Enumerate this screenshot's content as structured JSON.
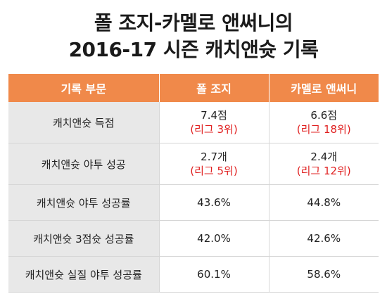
{
  "title": {
    "line1": "폴 조지-카멜로 앤써니의",
    "line2": "2016-17 시즌 캐치앤슛 기록"
  },
  "table": {
    "headers": [
      "기록 부문",
      "폴 조지",
      "카멜로 앤써니"
    ],
    "rows": [
      {
        "category": "캐치앤슛 득점",
        "george": {
          "value": "7.4점",
          "rank": "(리그 3위)"
        },
        "anthony": {
          "value": "6.6점",
          "rank": "(리그 18위)"
        }
      },
      {
        "category": "캐치앤슛 야투 성공",
        "george": {
          "value": "2.7개",
          "rank": "(리그 5위)"
        },
        "anthony": {
          "value": "2.4개",
          "rank": "(리그 12위)"
        }
      },
      {
        "category": "캐치앤슛 야투 성공률",
        "george": {
          "value": "43.6%"
        },
        "anthony": {
          "value": "44.8%"
        }
      },
      {
        "category": "캐치앤슛 3점슛 성공률",
        "george": {
          "value": "42.0%"
        },
        "anthony": {
          "value": "42.6%"
        }
      },
      {
        "category": "캐치앤슛 실질 야투 성공률",
        "george": {
          "value": "60.1%"
        },
        "anthony": {
          "value": "58.6%"
        }
      }
    ]
  },
  "colors": {
    "header_bg": "#f0894a",
    "category_bg": "#e8e8e8",
    "rank_text": "#e02020"
  }
}
